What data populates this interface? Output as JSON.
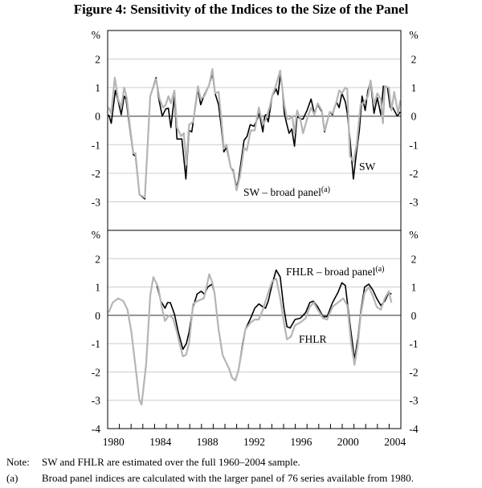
{
  "title": "Figure 4: Sensitivity of the Indices to the Size of the Panel",
  "colors": {
    "black_series": "#000000",
    "grey_series": "#b5b5b5",
    "grid": "#cccccc"
  },
  "notes": {
    "note_lead": "Note:",
    "note_text": "SW and FHLR are estimated over the full 1960–2004 sample.",
    "footnote_lead": "(a)",
    "footnote_text": "Broad panel indices are calculated with the larger panel of 76 series available from 1980."
  },
  "chart_data": [
    {
      "type": "line",
      "panel": "top",
      "unit_label": "%",
      "xlim": [
        1980,
        2005
      ],
      "ylim": [
        -4,
        3
      ],
      "yticks": [
        2,
        1,
        0,
        -1,
        -2,
        -3
      ],
      "xtick_labels": [
        "1980",
        "1984",
        "1988",
        "1992",
        "1996",
        "2000",
        "2004"
      ],
      "grid": true,
      "series": [
        {
          "name": "SW – broad panel",
          "name_sup": "(a)",
          "color": "#000000",
          "x": [
            1980.09,
            1980.31,
            1980.66,
            1980.89,
            1981.16,
            1981.41,
            1981.57,
            1981.91,
            1982.19,
            1982.37,
            1982.71,
            1983.17,
            1983.63,
            1984.13,
            1984.36,
            1984.66,
            1984.95,
            1985.18,
            1985.39,
            1985.69,
            1985.91,
            1986.33,
            1986.67,
            1986.94,
            1987.17,
            1987.51,
            1987.7,
            1987.93,
            1988.25,
            1988.66,
            1988.93,
            1989.16,
            1989.46,
            1989.69,
            1989.91,
            1990.14,
            1990.49,
            1990.71,
            1990.99,
            1991.17,
            1991.63,
            1991.9,
            1992.15,
            1992.47,
            1992.77,
            1992.93,
            1993.23,
            1993.39,
            1993.5,
            1993.69,
            1994.03,
            1994.37,
            1994.53,
            1994.71,
            1994.87,
            1995.06,
            1995.29,
            1995.47,
            1995.7,
            1995.93,
            1996.15,
            1996.43,
            1996.66,
            1997.0,
            1997.34,
            1997.62,
            1997.91,
            1998.26,
            1998.49,
            1998.94,
            1999.17,
            1999.51,
            1999.74,
            1999.97,
            2000.27,
            2000.43,
            2000.66,
            2000.95,
            2001.23,
            2001.46,
            2001.69,
            2001.96,
            2002.19,
            2002.42,
            2002.71,
            2002.99,
            2003.29,
            2003.51,
            2003.86,
            2004.09,
            2004.31,
            2004.7,
            2004.95
          ],
          "y": [
            0.05,
            -0.25,
            0.9,
            0.55,
            0.05,
            0.7,
            0.6,
            -0.5,
            -1.35,
            -1.4,
            -2.75,
            -2.9,
            0.7,
            1.35,
            0.6,
            0,
            0.25,
            0.28,
            -0.4,
            0.7,
            -0.8,
            -0.8,
            -2.2,
            -0.5,
            -0.55,
            0.4,
            0.95,
            0.4,
            0.75,
            1.1,
            1.5,
            0.8,
            0.4,
            -0.4,
            -1.25,
            -1.1,
            -1.8,
            -1.9,
            -2.5,
            -2.2,
            -0.85,
            -0.7,
            -0.3,
            -0.35,
            -0.1,
            0.1,
            -0.55,
            0,
            0.05,
            -0.2,
            0.7,
            0.95,
            0.75,
            1.4,
            1.1,
            0.1,
            -0.3,
            -0.6,
            -0.45,
            -1.05,
            0,
            -0.1,
            -0.1,
            0.2,
            0.6,
            0.1,
            0.4,
            0.15,
            -0.55,
            0.15,
            0.05,
            0.5,
            0.3,
            0.8,
            0.5,
            0.1,
            -0.8,
            -2.2,
            -1.2,
            -0.5,
            0.7,
            0.2,
            0.9,
            1.2,
            0.1,
            0.65,
            0.05,
            1.05,
            1.0,
            0.3,
            0.3,
            0.0,
            0.15
          ]
        },
        {
          "name": "SW",
          "color": "#b5b5b5",
          "x": [
            1980.09,
            1980.31,
            1980.61,
            1980.89,
            1981.16,
            1981.41,
            1981.62,
            1981.91,
            1982.19,
            1982.37,
            1982.71,
            1983.17,
            1983.63,
            1984.13,
            1984.43,
            1984.73,
            1984.95,
            1985.18,
            1985.39,
            1985.69,
            1985.91,
            1986.26,
            1986.49,
            1986.71,
            1986.94,
            1987.29,
            1987.7,
            1987.93,
            1988.25,
            1988.66,
            1988.93,
            1989.16,
            1989.46,
            1989.69,
            1989.91,
            1990.14,
            1990.49,
            1990.71,
            1990.99,
            1991.29,
            1991.63,
            1991.86,
            1992.2,
            1992.54,
            1992.89,
            1993.23,
            1993.5,
            1993.8,
            1994.03,
            1994.37,
            1994.71,
            1995.06,
            1995.29,
            1995.51,
            1995.74,
            1995.93,
            1996.15,
            1996.43,
            1996.66,
            1997.0,
            1997.34,
            1997.62,
            1997.91,
            1998.26,
            1998.49,
            1998.94,
            1999.17,
            1999.51,
            1999.74,
            1999.97,
            2000.27,
            2000.43,
            2000.66,
            2000.95,
            2001.23,
            2001.57,
            2001.91,
            2002.19,
            2002.42,
            2002.71,
            2002.99,
            2003.29,
            2003.47,
            2003.63,
            2003.97,
            2004.2,
            2004.43,
            2004.77,
            2004.95
          ],
          "y": [
            0.3,
            0.1,
            1.35,
            0.6,
            0.3,
            1.0,
            0.65,
            -0.4,
            -1.3,
            -1.3,
            -2.75,
            -2.85,
            0.7,
            1.3,
            0.6,
            0.3,
            0.4,
            0.7,
            0.45,
            0.9,
            -0.4,
            -0.7,
            -0.6,
            -1.7,
            -0.3,
            -0.2,
            1.05,
            0.6,
            0.7,
            1.1,
            1.65,
            0.8,
            0.85,
            -0.1,
            -1.15,
            -1.0,
            -1.8,
            -1.95,
            -2.6,
            -2.1,
            -1.1,
            -1.2,
            -0.5,
            -0.5,
            0.3,
            -0.3,
            -0.1,
            0.3,
            0.7,
            1.1,
            1.6,
            0.4,
            -0.1,
            -0.1,
            0,
            -0.6,
            0.2,
            -0.1,
            -0.6,
            -0.1,
            0.3,
            0.05,
            0.45,
            0.2,
            -0.5,
            0.15,
            0.1,
            0.5,
            0.9,
            0.8,
            1.0,
            0.95,
            -1.4,
            -1.6,
            -1.0,
            0.4,
            0.5,
            0.7,
            1.25,
            0.4,
            0.8,
            0.6,
            -0.25,
            1.05,
            1.0,
            0.2,
            0.85,
            0.1,
            0.55
          ]
        }
      ]
    },
    {
      "type": "line",
      "panel": "bottom",
      "unit_label": "%",
      "xlim": [
        1980,
        2005
      ],
      "ylim": [
        -4,
        3
      ],
      "yticks": [
        2,
        1,
        0,
        -1,
        -2,
        -3,
        -4
      ],
      "xtick_labels": [
        "1980",
        "1984",
        "1988",
        "1992",
        "1996",
        "2000",
        "2004"
      ],
      "grid": true,
      "series": [
        {
          "name": "FHLR – broad panel",
          "name_sup": "(a)",
          "color": "#000000",
          "x": [
            1984.2,
            1984.54,
            1984.89,
            1985.11,
            1985.34,
            1985.69,
            1986.03,
            1986.42,
            1986.71,
            1986.94,
            1987.29,
            1987.63,
            1987.97,
            1988.25,
            1988.54,
            1988.89,
            1989.11,
            1989.46,
            1989.8,
            1990.03,
            1990.37,
            1990.6,
            1990.9,
            1991.17,
            1991.51,
            1991.74,
            1992.2,
            1992.54,
            1992.89,
            1993.23,
            1993.46,
            1993.69,
            1994.03,
            1994.37,
            1994.71,
            1995.01,
            1995.29,
            1995.56,
            1995.97,
            1996.43,
            1996.89,
            1997.23,
            1997.53,
            1997.91,
            1998.37,
            1998.71,
            1999.17,
            1999.63,
            1999.97,
            2000.27,
            2000.66,
            2001.05,
            2001.34,
            2001.57,
            2001.91,
            2002.26,
            2002.6,
            2002.94,
            2003.29,
            2003.63,
            2003.97,
            2004.2
          ],
          "y": [
            1.05,
            0.5,
            0.25,
            0.45,
            0.45,
            0.05,
            -0.6,
            -1.2,
            -1.0,
            -0.6,
            0.3,
            0.75,
            0.85,
            0.75,
            1.0,
            1.1,
            0.8,
            -0.5,
            -1.4,
            -1.6,
            -1.9,
            -2.2,
            -2.3,
            -1.9,
            -1.0,
            -0.5,
            -0.1,
            0.25,
            0.4,
            0.3,
            0.25,
            0.5,
            1.1,
            1.6,
            1.35,
            0.3,
            -0.4,
            -0.45,
            -0.15,
            -0.1,
            0.1,
            0.45,
            0.5,
            0.3,
            -0.05,
            -0.05,
            0.45,
            0.8,
            1.15,
            1.05,
            -0.3,
            -1.55,
            -0.8,
            0.1,
            1.0,
            1.1,
            0.9,
            0.6,
            0.35,
            0.5,
            0.8,
            0.75
          ]
        },
        {
          "name": "FHLR",
          "color": "#b5b5b5",
          "x": [
            1980.09,
            1980.43,
            1980.89,
            1981.34,
            1981.69,
            1982.03,
            1982.37,
            1982.71,
            1982.9,
            1983.29,
            1983.63,
            1983.9,
            1984.31,
            1984.66,
            1984.89,
            1985.23,
            1985.57,
            1985.91,
            1986.19,
            1986.42,
            1986.67,
            1986.94,
            1987.29,
            1987.63,
            1988.2,
            1988.43,
            1988.66,
            1988.89,
            1989.11,
            1989.46,
            1989.8,
            1990.03,
            1990.37,
            1990.6,
            1990.9,
            1991.17,
            1991.51,
            1991.74,
            1992.2,
            1992.54,
            1992.89,
            1993.23,
            1993.69,
            1994.03,
            1994.37,
            1994.71,
            1995.01,
            1995.29,
            1995.63,
            1995.97,
            1996.43,
            1996.89,
            1997.23,
            1997.57,
            1997.91,
            1998.37,
            1998.71,
            1999.17,
            1999.63,
            2000.09,
            2000.43,
            2000.77,
            2001.05,
            2001.34,
            2001.57,
            2001.91,
            2002.26,
            2002.6,
            2002.94,
            2003.29,
            2003.63,
            2003.97,
            2004.2
          ],
          "y": [
            0.1,
            0.45,
            0.6,
            0.5,
            0.2,
            -0.6,
            -1.8,
            -3.0,
            -3.15,
            -1.7,
            0.7,
            1.35,
            1.0,
            0.2,
            -0.2,
            0,
            -0.1,
            -0.6,
            -1.1,
            -1.45,
            -1.4,
            -1.0,
            0.4,
            0.5,
            0.6,
            1.0,
            1.45,
            1.2,
            0.8,
            -0.5,
            -1.4,
            -1.6,
            -1.9,
            -2.2,
            -2.3,
            -1.9,
            -1.1,
            -0.5,
            -0.25,
            -0.15,
            -0.15,
            0.2,
            0.8,
            1.2,
            1.3,
            0.6,
            -0.2,
            -0.85,
            -0.75,
            -0.35,
            -0.25,
            -0.1,
            0.3,
            0.45,
            0.2,
            -0.1,
            -0.15,
            0.3,
            0.45,
            0.6,
            0.35,
            -1.0,
            -1.75,
            -1.0,
            0,
            0.8,
            1.0,
            0.7,
            0.3,
            0.2,
            0.6,
            0.85,
            0.45
          ]
        }
      ]
    }
  ]
}
